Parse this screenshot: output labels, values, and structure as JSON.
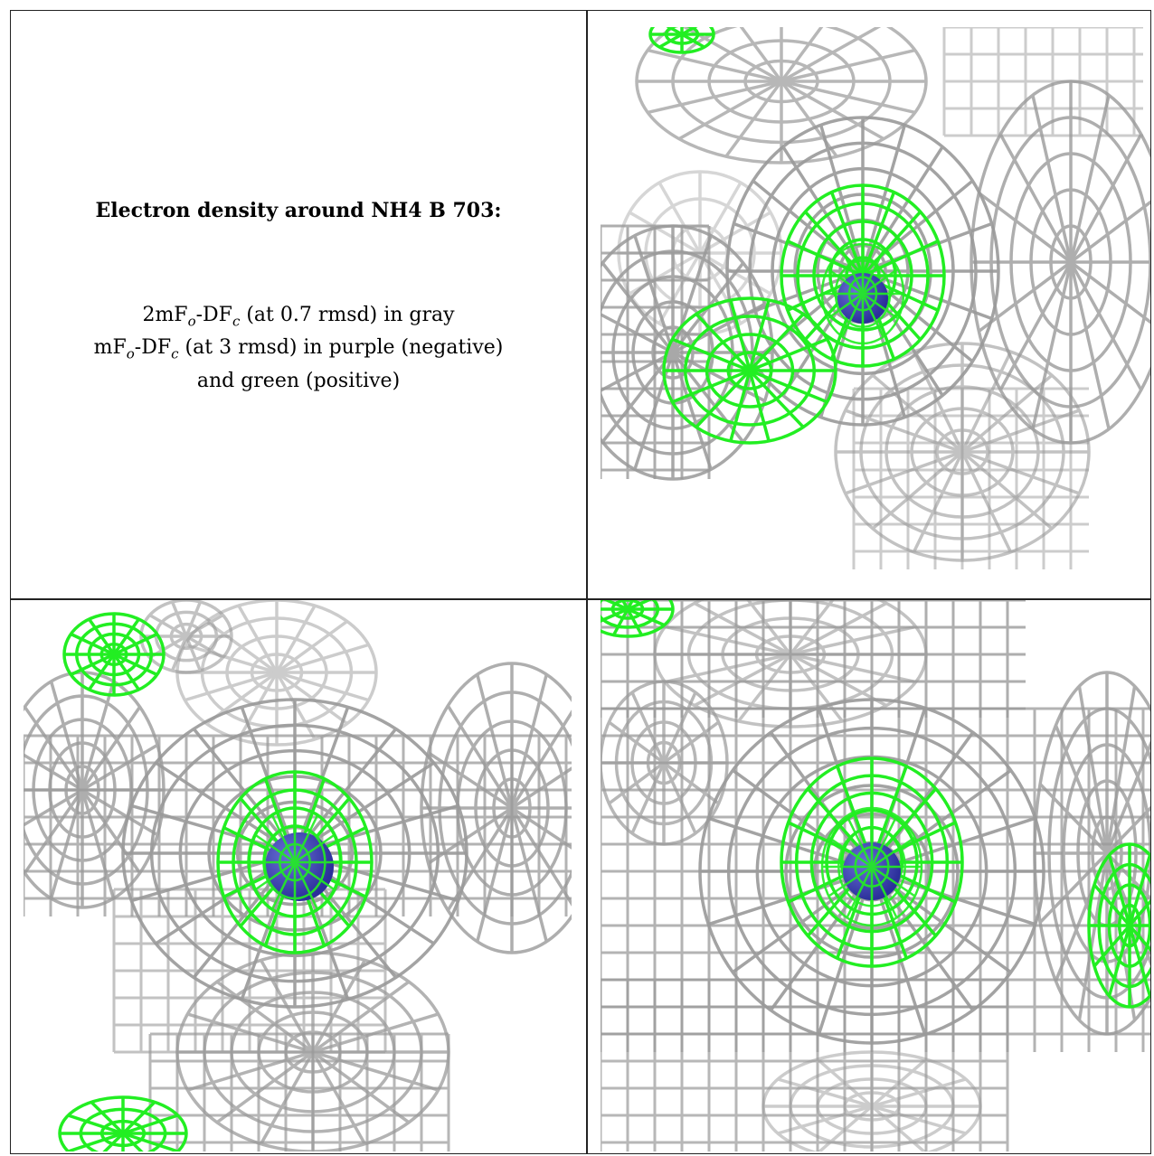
{
  "caption": {
    "title": "Electron density around NH4 B 703:",
    "line1": {
      "prefix": "2mF",
      "sub1": "o",
      "mid": "-DF",
      "sub2": "c",
      "suffix": " (at 0.7 rmsd) in gray"
    },
    "line2": {
      "prefix": "mF",
      "sub1": "o",
      "mid": "-DF",
      "sub2": "c",
      "suffix": " (at 3 rmsd) in purple (negative)"
    },
    "line3": "and green (positive)"
  },
  "colors": {
    "map_2fofc": "#9a9a9a",
    "map_fofc_positive": "#22ee22",
    "atom": "#2b2f9a"
  },
  "panels": [
    {
      "name": "view-top-right"
    },
    {
      "name": "view-bottom-left"
    },
    {
      "name": "view-bottom-right"
    }
  ]
}
